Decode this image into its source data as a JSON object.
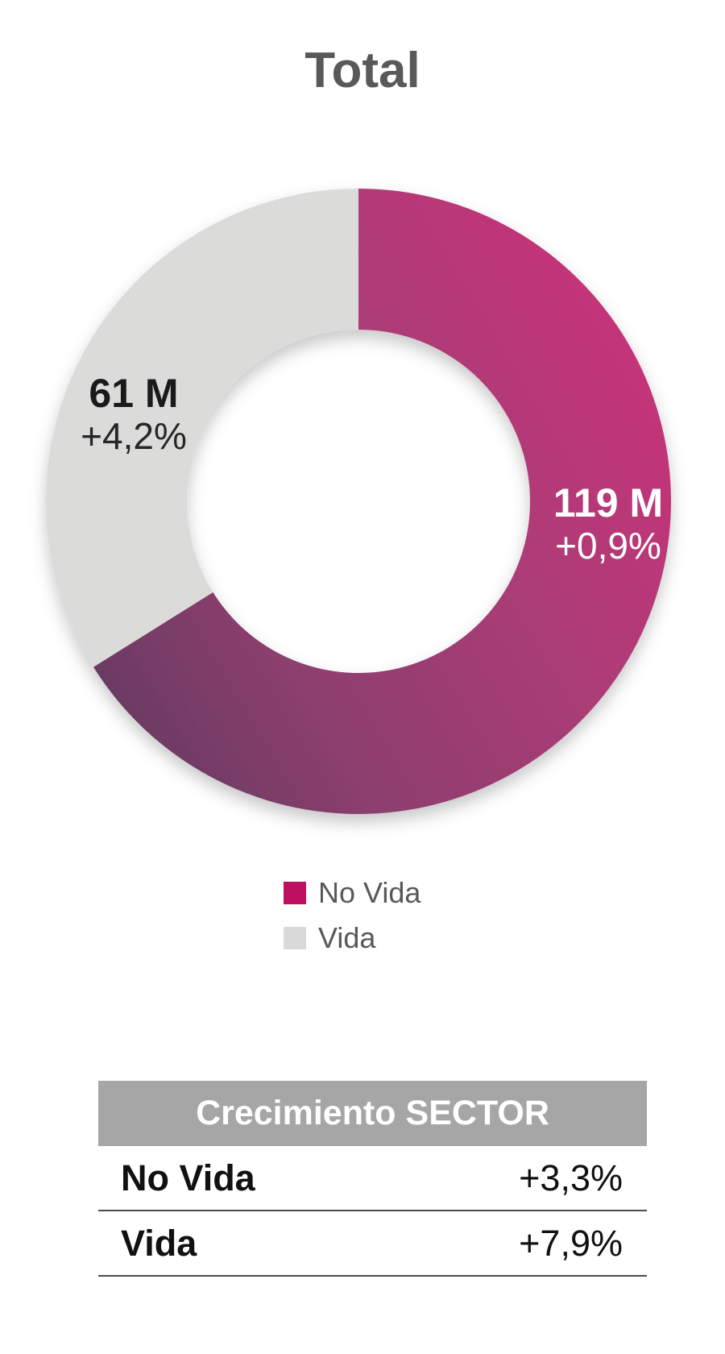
{
  "title": "Total",
  "chart_data": {
    "type": "pie",
    "donut": true,
    "title": "Total",
    "start_angle_deg": 0,
    "direction": "clockwise",
    "segments": [
      {
        "label": "No Vida",
        "value": 119,
        "value_label": "119 M",
        "growth": "+0,9%",
        "color": "#BE1060",
        "gradient": [
          "#6B3A64",
          "#8C3F6D",
          "#AC3C77",
          "#C93278"
        ]
      },
      {
        "label": "Vida",
        "value": 61,
        "value_label": "61 M",
        "growth": "+4,2%",
        "color": "#DBDBDA"
      }
    ],
    "legend_position": "bottom"
  },
  "legend": {
    "items": [
      {
        "label": "No Vida",
        "color": "#BE1060"
      },
      {
        "label": "Vida",
        "color": "#D9D9D9"
      }
    ]
  },
  "table": {
    "header": "Crecimiento SECTOR",
    "rows": [
      {
        "label": "No Vida",
        "value": "+3,3%"
      },
      {
        "label": "Vida",
        "value": "+7,9%"
      }
    ]
  },
  "colors": {
    "title_text": "#58595B",
    "legend_text": "#595959",
    "table_header_bg": "#A6A6A6",
    "table_header_text": "#FFFFFF",
    "table_rule": "#4D4D4D",
    "novida_label_text": "#FFFFFF",
    "vida_label_text": "#1A1A1A"
  }
}
